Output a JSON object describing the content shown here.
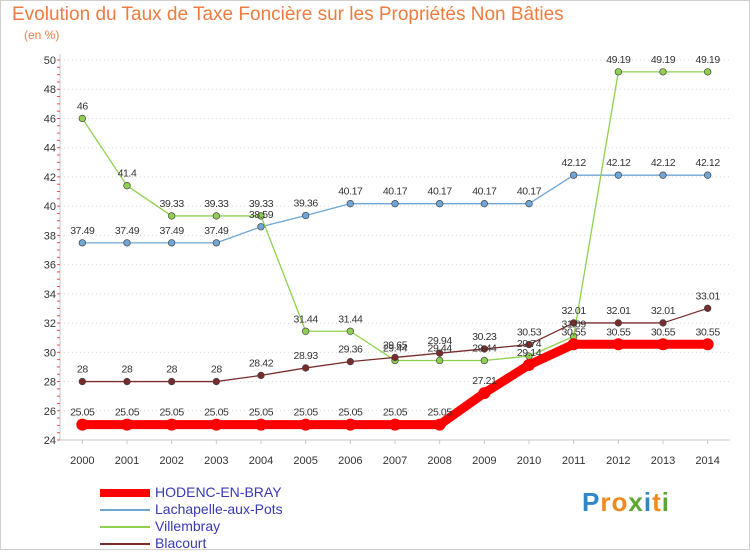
{
  "chart_data": {
    "type": "line",
    "title": "Evolution du Taux de Taxe Foncière sur les Propriétés Non Bâties",
    "ylabel": "(en %)",
    "xlabel": "",
    "ylim": [
      24,
      50
    ],
    "yticks": [
      "24",
      "26",
      "28",
      "30",
      "32",
      "34",
      "36",
      "38",
      "40",
      "42",
      "44",
      "46",
      "48",
      "50"
    ],
    "categories": [
      "2000",
      "2001",
      "2002",
      "2003",
      "2004",
      "2005",
      "2006",
      "2007",
      "2008",
      "2009",
      "2010",
      "2011",
      "2012",
      "2013",
      "2014"
    ],
    "series": [
      {
        "name": "HODENC-EN-BRAY",
        "color": "#ff0000",
        "values": [
          25.05,
          25.05,
          25.05,
          25.05,
          25.05,
          25.05,
          25.05,
          25.05,
          25.05,
          27.21,
          29.14,
          30.55,
          30.55,
          30.55,
          30.55
        ],
        "labels": [
          "25.05",
          "25.05",
          "25.05",
          "25.05",
          "25.05",
          "25.05",
          "25.05",
          "25.05",
          "25.05",
          "27.21",
          "29.14",
          "30.55",
          "30.55",
          "30.55",
          "30.55"
        ]
      },
      {
        "name": "Lachapelle-aux-Pots",
        "color": "#6fa6d6",
        "values": [
          37.49,
          37.49,
          37.49,
          37.49,
          38.59,
          39.36,
          40.17,
          40.17,
          40.17,
          40.17,
          40.17,
          42.12,
          42.12,
          42.12,
          42.12
        ],
        "labels": [
          "37.49",
          "37.49",
          "37.49",
          "37.49",
          "38.59",
          "39.36",
          "40.17",
          "40.17",
          "40.17",
          "40.17",
          "40.17",
          "42.12",
          "42.12",
          "42.12",
          "42.12"
        ]
      },
      {
        "name": "Villembray",
        "color": "#8fd14f",
        "values": [
          46,
          41.4,
          39.33,
          39.33,
          39.33,
          31.44,
          31.44,
          29.44,
          29.44,
          29.44,
          29.74,
          31.09,
          49.19,
          49.19,
          49.19
        ],
        "labels": [
          "46",
          "41.4",
          "39.33",
          "39.33",
          "39.33",
          "31.44",
          "31.44",
          "29.44",
          "29.44",
          "29.44",
          "29.74",
          "31.09",
          "49.19",
          "49.19",
          "49.19"
        ]
      },
      {
        "name": "Blacourt",
        "color": "#7a2b2b",
        "values": [
          28,
          28,
          28,
          28,
          28.42,
          28.93,
          29.36,
          29.65,
          29.94,
          30.23,
          30.53,
          32.01,
          32.01,
          32.01,
          33.01
        ],
        "labels": [
          "28",
          "28",
          "28",
          "28",
          "28.42",
          "28.93",
          "29.36",
          "29.65",
          "29.94",
          "30.23",
          "30.53",
          "32.01",
          "32.01",
          "32.01",
          "33.01"
        ]
      }
    ]
  },
  "legend": [
    {
      "label": "HODENC-EN-BRAY",
      "color": "#ff0000"
    },
    {
      "label": "Lachapelle-aux-Pots",
      "color": "#6fa6d6"
    },
    {
      "label": "Villembray",
      "color": "#8fd14f"
    },
    {
      "label": "Blacourt",
      "color": "#7a2b2b"
    }
  ],
  "logo": {
    "letters": [
      "P",
      "r",
      "o",
      "x",
      "i",
      "t",
      "i"
    ],
    "colors": [
      "#2f86c8",
      "#f08a1c",
      "#f08a1c",
      "#5aa832",
      "#2f86c8",
      "#f08a1c",
      "#5aa832"
    ]
  }
}
